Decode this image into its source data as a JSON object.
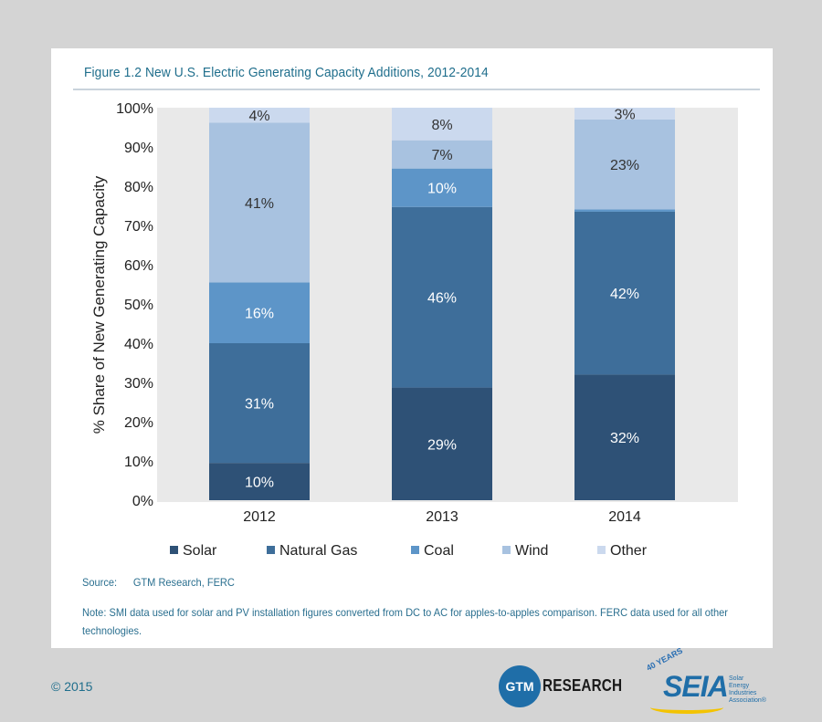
{
  "figure": {
    "title": "Figure 1.2  New U.S. Electric Generating Capacity Additions, 2012-2014"
  },
  "chart_data": {
    "type": "bar",
    "stacked": true,
    "categories": [
      "2012",
      "2013",
      "2014"
    ],
    "ylabel": "% Share of New Generating Capacity",
    "ylim": [
      0,
      100
    ],
    "yticks": [
      "0%",
      "10%",
      "20%",
      "30%",
      "40%",
      "50%",
      "60%",
      "70%",
      "80%",
      "90%",
      "100%"
    ],
    "grid": false,
    "legend_position": "bottom",
    "series": [
      {
        "name": "Solar",
        "color": "#2e5176",
        "values": [
          9.5,
          28.7,
          32
        ],
        "labels": [
          "10%",
          "29%",
          "32%"
        ],
        "label_color": "#ffffff"
      },
      {
        "name": "Natural Gas",
        "color": "#3e6e9a",
        "values": [
          30.5,
          46,
          41.5
        ],
        "labels": [
          "31%",
          "46%",
          "42%"
        ],
        "label_color": "#ffffff"
      },
      {
        "name": "Coal",
        "color": "#5d95c8",
        "values": [
          15.5,
          9.8,
          0.6
        ],
        "labels": [
          "16%",
          "10%",
          ""
        ],
        "label_color": "#ffffff"
      },
      {
        "name": "Wind",
        "color": "#a8c2e0",
        "values": [
          40.7,
          7.2,
          22.9
        ],
        "labels": [
          "41%",
          "7%",
          "23%"
        ],
        "label_color": "#333333"
      },
      {
        "name": "Other",
        "color": "#cbd9ee",
        "values": [
          3.8,
          8.3,
          3
        ],
        "labels": [
          "4%",
          "8%",
          "3%"
        ],
        "label_color": "#333333"
      }
    ]
  },
  "footer": {
    "source_label": "Source:",
    "source_value": "GTM Research, FERC",
    "note": "Note: SMI data used for solar and PV installation figures converted from DC to AC for apples-to-apples comparison. FERC data used for all other technologies.",
    "copyright": "© 2015"
  },
  "logos": {
    "gtm_mark": "GTM",
    "gtm_text": "RESEARCH",
    "seia_years": "40 YEARS",
    "seia_main": "SEIA",
    "seia_sub": "Solar Energy Industries Association®"
  }
}
